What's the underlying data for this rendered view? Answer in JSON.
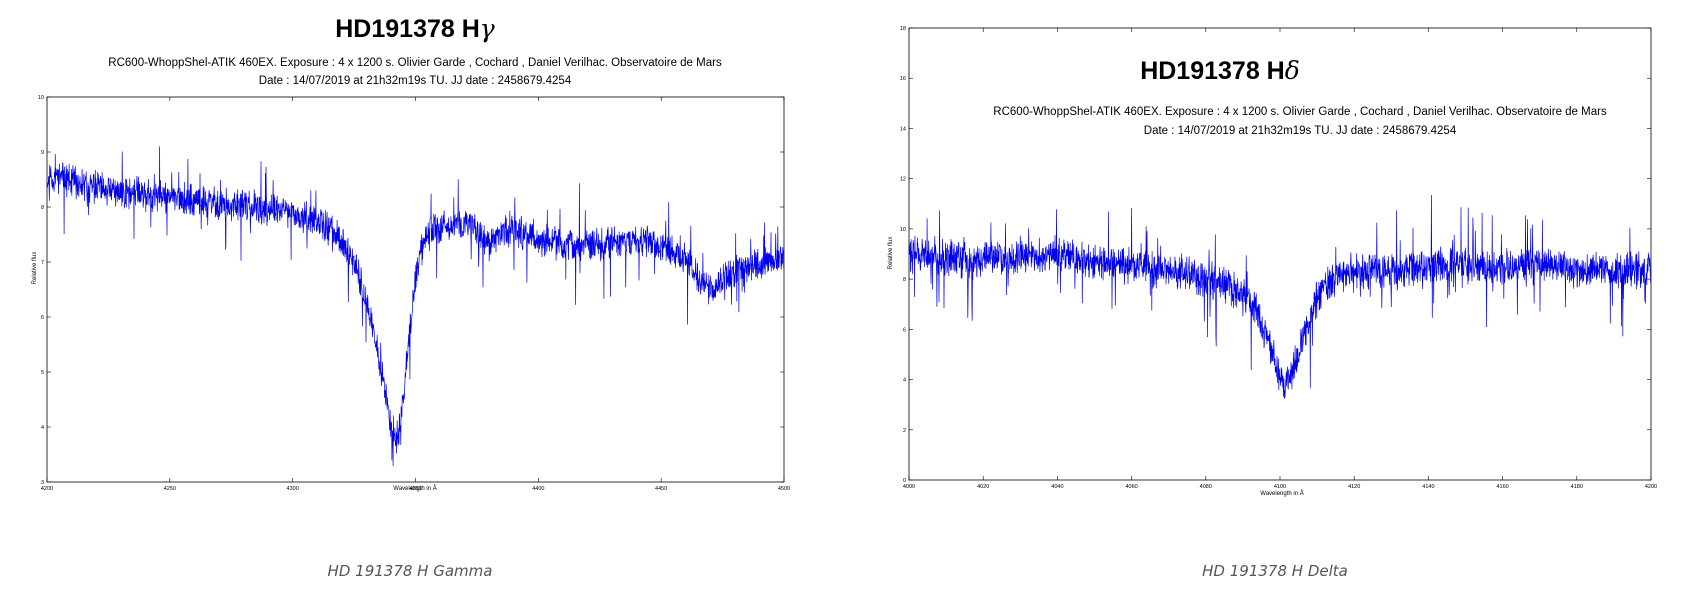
{
  "chart_data": [
    {
      "type": "line",
      "title": "HD191378 H",
      "title_symbol": "γ",
      "subtitle_line1": "RC600-WhoppShel-ATIK 460EX. Exposure : 4 x 1200 s. Olivier Garde , Cochard , Daniel Verilhac. Observatoire de Mars",
      "subtitle_line2": "Date : 14/07/2019 at 21h32m19s TU. JJ date : 2458679.4254",
      "xlabel": "Wavelength in Å",
      "ylabel": "Relative flux",
      "xlim": [
        4200,
        4500
      ],
      "ylim": [
        3,
        10
      ],
      "xticks": [
        4200,
        4250,
        4300,
        4350,
        4400,
        4450,
        4500
      ],
      "yticks": [
        3,
        4,
        5,
        6,
        7,
        8,
        9,
        10
      ],
      "grid": false,
      "line_color": "#0000ee",
      "series": [
        {
          "x": [
            4200,
            4205,
            4210,
            4215,
            4220,
            4225,
            4230,
            4235,
            4240,
            4245,
            4250,
            4255,
            4260,
            4265,
            4270,
            4275,
            4280,
            4285,
            4290,
            4295,
            4300,
            4305,
            4310,
            4315,
            4320,
            4325,
            4328,
            4331,
            4334,
            4337,
            4340,
            4342,
            4344,
            4346,
            4348,
            4350,
            4353,
            4356,
            4360,
            4365,
            4370,
            4375,
            4380,
            4385,
            4390,
            4395,
            4400,
            4405,
            4410,
            4415,
            4420,
            4425,
            4430,
            4435,
            4440,
            4445,
            4450,
            4455,
            4460,
            4465,
            4470,
            4475,
            4480,
            4485,
            4490,
            4495,
            4500
          ],
          "y": [
            8.5,
            8.55,
            8.45,
            8.4,
            8.35,
            8.3,
            8.25,
            8.3,
            8.2,
            8.2,
            8.2,
            8.15,
            8.1,
            8.1,
            8.05,
            8.0,
            8.05,
            7.95,
            7.95,
            7.9,
            7.9,
            7.8,
            7.75,
            7.6,
            7.4,
            7.0,
            6.6,
            6.1,
            5.5,
            4.8,
            4.0,
            3.7,
            4.1,
            5.0,
            5.9,
            6.7,
            7.3,
            7.6,
            7.65,
            7.7,
            7.7,
            7.6,
            7.3,
            7.55,
            7.6,
            7.5,
            7.4,
            7.35,
            7.3,
            7.3,
            7.3,
            7.3,
            7.35,
            7.35,
            7.4,
            7.4,
            7.3,
            7.2,
            7.05,
            6.7,
            6.5,
            6.7,
            6.8,
            6.9,
            6.95,
            7.0,
            7.05
          ]
        }
      ]
    },
    {
      "type": "line",
      "title": "HD191378 H",
      "title_symbol": "δ",
      "subtitle_line1": "RC600-WhoppShel-ATIK 460EX. Exposure : 4 x 1200 s. Olivier Garde , Cochard , Daniel Verilhac. Observatoire de Mars",
      "subtitle_line2": "Date : 14/07/2019 at 21h32m19s TU. JJ date : 2458679.4254",
      "xlabel": "Wavelength in Å",
      "ylabel": "Relative flux",
      "xlim": [
        4000,
        4200
      ],
      "ylim": [
        0,
        18
      ],
      "xticks": [
        4000,
        4020,
        4040,
        4060,
        4080,
        4100,
        4120,
        4140,
        4160,
        4180,
        4200
      ],
      "yticks": [
        0,
        2,
        4,
        6,
        8,
        10,
        12,
        14,
        16,
        18
      ],
      "grid": false,
      "line_color": "#0000ee",
      "series": [
        {
          "x": [
            4000,
            4004,
            4008,
            4012,
            4016,
            4020,
            4024,
            4028,
            4032,
            4036,
            4040,
            4044,
            4048,
            4052,
            4056,
            4060,
            4064,
            4068,
            4072,
            4076,
            4080,
            4084,
            4088,
            4092,
            4094,
            4096,
            4098,
            4100,
            4101,
            4102,
            4104,
            4106,
            4108,
            4110,
            4112,
            4116,
            4120,
            4124,
            4128,
            4132,
            4136,
            4140,
            4144,
            4148,
            4152,
            4156,
            4160,
            4164,
            4168,
            4172,
            4176,
            4180,
            4184,
            4188,
            4192,
            4196,
            4200
          ],
          "y": [
            9.0,
            9.0,
            8.8,
            8.9,
            8.7,
            8.8,
            8.9,
            8.8,
            8.9,
            8.9,
            9.0,
            8.9,
            8.7,
            8.6,
            8.6,
            8.5,
            8.5,
            8.3,
            8.3,
            8.2,
            8.0,
            7.8,
            7.6,
            7.1,
            6.6,
            5.9,
            5.0,
            4.2,
            3.6,
            3.9,
            4.6,
            5.6,
            6.4,
            7.2,
            7.8,
            8.1,
            8.2,
            8.3,
            8.2,
            8.3,
            8.4,
            8.5,
            8.6,
            8.5,
            8.5,
            8.4,
            8.5,
            8.5,
            8.5,
            8.6,
            8.5,
            8.4,
            8.4,
            8.3,
            8.3,
            8.4,
            8.4
          ]
        }
      ]
    }
  ],
  "captions": {
    "left": "HD 191378 H Gamma",
    "right": "HD 191378 H Delta"
  }
}
